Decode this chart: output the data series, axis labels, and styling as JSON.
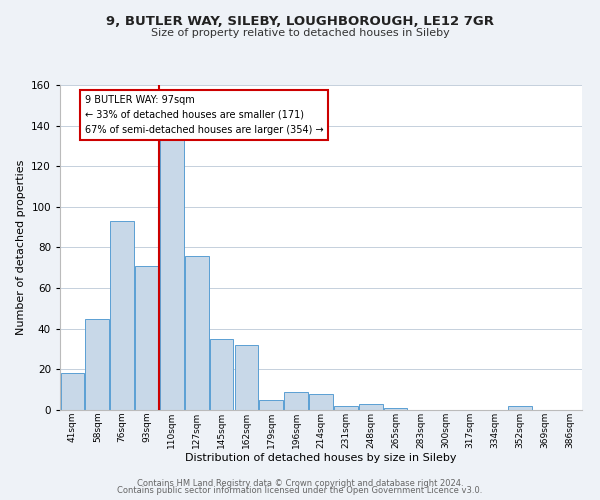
{
  "title_line1": "9, BUTLER WAY, SILEBY, LOUGHBOROUGH, LE12 7GR",
  "title_line2": "Size of property relative to detached houses in Sileby",
  "xlabel": "Distribution of detached houses by size in Sileby",
  "ylabel": "Number of detached properties",
  "bar_labels": [
    "41sqm",
    "58sqm",
    "76sqm",
    "93sqm",
    "110sqm",
    "127sqm",
    "145sqm",
    "162sqm",
    "179sqm",
    "196sqm",
    "214sqm",
    "231sqm",
    "248sqm",
    "265sqm",
    "283sqm",
    "300sqm",
    "317sqm",
    "334sqm",
    "352sqm",
    "369sqm",
    "386sqm"
  ],
  "bar_values": [
    18,
    45,
    93,
    71,
    133,
    76,
    35,
    32,
    5,
    9,
    8,
    2,
    3,
    1,
    0,
    0,
    0,
    0,
    2,
    0,
    0
  ],
  "bar_color": "#c8d8e8",
  "bar_edge_color": "#5a9fd4",
  "vline_x_idx": 3.5,
  "vline_color": "#cc0000",
  "ylim": [
    0,
    160
  ],
  "yticks": [
    0,
    20,
    40,
    60,
    80,
    100,
    120,
    140,
    160
  ],
  "annotation_text": "9 BUTLER WAY: 97sqm\n← 33% of detached houses are smaller (171)\n67% of semi-detached houses are larger (354) →",
  "annotation_box_color": "#ffffff",
  "annotation_box_edge": "#cc0000",
  "footer_line1": "Contains HM Land Registry data © Crown copyright and database right 2024.",
  "footer_line2": "Contains public sector information licensed under the Open Government Licence v3.0.",
  "background_color": "#eef2f7",
  "plot_background_color": "#ffffff",
  "grid_color": "#c5d0dc"
}
